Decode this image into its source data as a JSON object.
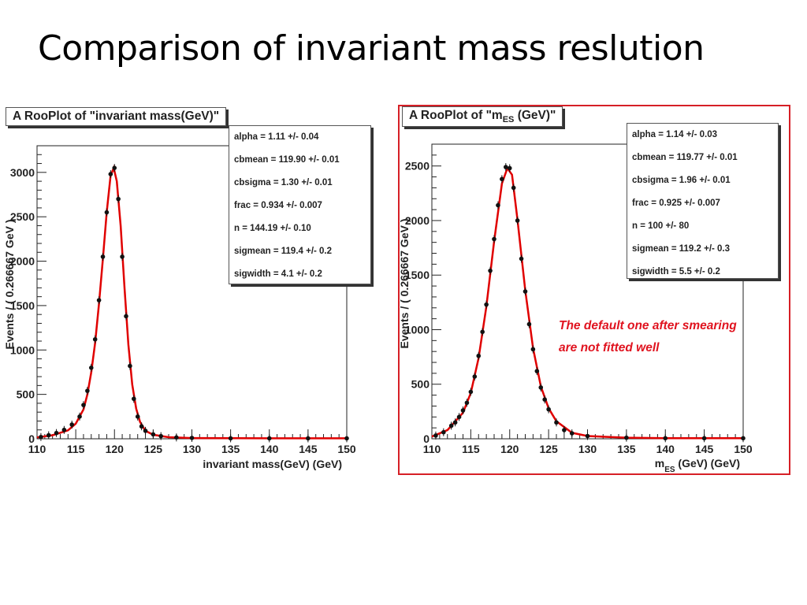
{
  "slide": {
    "title": "Comparison of invariant mass reslution",
    "note_lines": [
      "The default one after smearing",
      "are not fitted well"
    ]
  },
  "chart_data": [
    {
      "type": "scatter",
      "title": "A RooPlot of \"invariant mass(GeV)\"",
      "xlabel": "invariant mass(GeV) (GeV)",
      "ylabel": "Events / ( 0.266667 GeV )",
      "xlim": [
        110,
        150
      ],
      "ylim": [
        0,
        3300
      ],
      "xticks": [
        "110",
        "115",
        "120",
        "125",
        "130",
        "135",
        "140",
        "145",
        "150"
      ],
      "yticks": [
        "0",
        "500",
        "1000",
        "1500",
        "2000",
        "2500",
        "3000"
      ],
      "ytick_values": [
        0,
        500,
        1000,
        1500,
        2000,
        2500,
        3000
      ],
      "series": [
        {
          "kind": "points",
          "x": [
            110.5,
            111.5,
            112.5,
            113.5,
            114.5,
            115.5,
            116.0,
            116.5,
            117.0,
            117.5,
            118.0,
            118.5,
            119.0,
            119.5,
            120.0,
            120.5,
            121.0,
            121.5,
            122.0,
            122.5,
            123.0,
            123.5,
            124.0,
            125.0,
            126.0,
            128.0,
            130.0,
            135.0,
            140.0,
            145.0,
            150.0
          ],
          "y": [
            20,
            40,
            65,
            100,
            160,
            250,
            380,
            540,
            800,
            1120,
            1560,
            2050,
            2550,
            2980,
            3050,
            2700,
            2050,
            1380,
            820,
            450,
            250,
            140,
            90,
            50,
            30,
            15,
            10,
            5,
            5,
            5,
            5
          ]
        },
        {
          "kind": "fit-line",
          "color": "#e00000",
          "x": [
            110,
            112,
            114,
            115,
            116,
            116.5,
            117,
            117.5,
            118,
            118.5,
            119,
            119.5,
            119.9,
            120.3,
            120.8,
            121.3,
            121.8,
            122.3,
            122.8,
            123.3,
            124,
            125,
            127,
            130,
            140,
            150
          ],
          "y": [
            15,
            40,
            95,
            170,
            330,
            500,
            750,
            1080,
            1520,
            2020,
            2550,
            2960,
            3050,
            2900,
            2400,
            1700,
            1060,
            610,
            340,
            190,
            90,
            45,
            18,
            8,
            5,
            5
          ]
        }
      ],
      "fit_params": [
        "alpha =  1.11 +/- 0.04",
        "cbmean =  119.90 +/- 0.01",
        "cbsigma =  1.30 +/- 0.01",
        "frac =  0.934 +/- 0.007",
        "n =  144.19 +/- 0.10",
        "sigmean =  119.4 +/- 0.2",
        "sigwidth =  4.1 +/- 0.2"
      ],
      "grid": false,
      "legend": "top-right"
    },
    {
      "type": "scatter",
      "title_prefix": "A RooPlot of \"m",
      "title_sub": "ES",
      "title_suffix": " (GeV)\"",
      "xlabel_main": "m",
      "xlabel_sub": "ES",
      "xlabel_rest": " (GeV) (GeV)",
      "ylabel": "Events / ( 0.266667 GeV )",
      "xlim": [
        110,
        150
      ],
      "ylim": [
        0,
        2700
      ],
      "xticks": [
        "110",
        "115",
        "120",
        "125",
        "130",
        "135",
        "140",
        "145",
        "150"
      ],
      "yticks": [
        "0",
        "500",
        "1000",
        "1500",
        "2000",
        "2500"
      ],
      "ytick_values": [
        0,
        500,
        1000,
        1500,
        2000,
        2500
      ],
      "series": [
        {
          "kind": "points",
          "x": [
            110.5,
            111.5,
            112.5,
            113.0,
            113.5,
            114.0,
            114.5,
            115.0,
            115.5,
            116.0,
            116.5,
            117.0,
            117.5,
            118.0,
            118.5,
            119.0,
            119.5,
            120.0,
            120.5,
            121.0,
            121.5,
            122.0,
            122.5,
            123.0,
            123.5,
            124.0,
            124.5,
            125.0,
            126.0,
            127.0,
            128.0,
            130.0,
            135.0,
            140.0,
            145.0,
            150.0
          ],
          "y": [
            30,
            60,
            120,
            150,
            200,
            260,
            330,
            430,
            570,
            760,
            980,
            1230,
            1540,
            1830,
            2140,
            2380,
            2490,
            2480,
            2300,
            2000,
            1650,
            1350,
            1050,
            820,
            620,
            470,
            360,
            270,
            150,
            80,
            50,
            25,
            10,
            5,
            5,
            5
          ]
        },
        {
          "kind": "fit-line",
          "color": "#e00000",
          "x": [
            110,
            112,
            114,
            115,
            116,
            117,
            118,
            119,
            119.7,
            120.3,
            121,
            122,
            123,
            124,
            125,
            126,
            128,
            130,
            135,
            140,
            150
          ],
          "y": [
            20,
            80,
            240,
            420,
            740,
            1210,
            1810,
            2340,
            2480,
            2420,
            2010,
            1360,
            830,
            480,
            280,
            160,
            55,
            25,
            10,
            5,
            5
          ]
        }
      ],
      "fit_params": [
        "alpha =  1.14 +/- 0.03",
        "cbmean =  119.77 +/- 0.01",
        "cbsigma =  1.96 +/- 0.01",
        "frac =  0.925 +/- 0.007",
        "n =  100 +/- 80",
        "sigmean =  119.2 +/- 0.3",
        "sigwidth =  5.5 +/- 0.2"
      ],
      "grid": false,
      "legend": "top-right"
    }
  ]
}
